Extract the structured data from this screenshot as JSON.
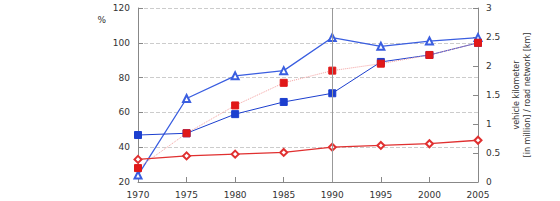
{
  "chart_data": {
    "type": "line",
    "y_label": "%",
    "y2_label": "vehicle kilometer\n[in million] / road network [km]",
    "x": [
      1970,
      1975,
      1980,
      1985,
      1990,
      1995,
      2000,
      2005
    ],
    "xlim": [
      1970,
      2005
    ],
    "xticks": [
      1970,
      1975,
      1980,
      1985,
      1990,
      1995,
      2000,
      2005
    ],
    "ylim": [
      20,
      120
    ],
    "yticks": [
      20,
      40,
      60,
      80,
      100,
      120
    ],
    "y2lim": [
      0,
      3
    ],
    "y2ticks": [
      0,
      0.5,
      1,
      1.5,
      2,
      2.5,
      3
    ],
    "vline_x": 1990,
    "grid": true,
    "series": [
      {
        "color": "#3a5ee0",
        "marker": "triangle-open",
        "line_style": "solid",
        "values": [
          24,
          68,
          81,
          84,
          103,
          98,
          101,
          103
        ]
      },
      {
        "color": "#1c3fcf",
        "marker": "square",
        "line_style": "solid",
        "values": [
          47,
          48,
          59,
          66,
          71,
          89,
          93,
          100
        ]
      },
      {
        "color": "#e01818",
        "marker": "square",
        "line_style": "dotted",
        "values": [
          28,
          48,
          64,
          77,
          84,
          88,
          93,
          100
        ]
      },
      {
        "color": "#e03030",
        "marker": "diamond-open",
        "line_style": "solid",
        "axis": "y2",
        "values": [
          0.39,
          0.45,
          0.48,
          0.51,
          0.6,
          0.63,
          0.66,
          0.72
        ]
      }
    ]
  }
}
